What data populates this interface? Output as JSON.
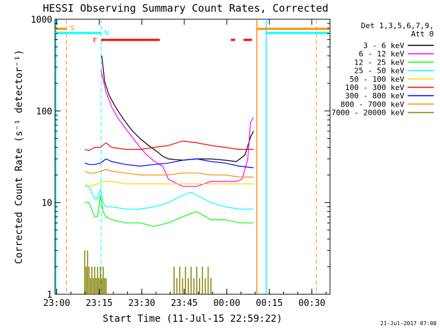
{
  "chart_data": {
    "type": "line",
    "title": "HESSI Observing Summary Count Rates, Corrected",
    "xlabel": "Start Time (11-Jul-15 22:59:22)",
    "ylabel": "Corrected Count Rate (s⁻¹ detector⁻¹)",
    "x_unit": "minutes since 22:59:22",
    "xlim": [
      0,
      97
    ],
    "ylim": [
      1,
      1000
    ],
    "y_scale": "log",
    "x_ticks": [
      {
        "label": "23:00",
        "value": 0.6
      },
      {
        "label": "23:15",
        "value": 15.6
      },
      {
        "label": "23:30",
        "value": 30.6
      },
      {
        "label": "23:45",
        "value": 45.6
      },
      {
        "label": "00:00",
        "value": 60.6
      },
      {
        "label": "00:15",
        "value": 75.6
      },
      {
        "label": "00:30",
        "value": 90.6
      }
    ],
    "y_ticks": [
      {
        "label": "1",
        "value": 1
      },
      {
        "label": "10",
        "value": 10
      },
      {
        "label": "100",
        "value": 100
      },
      {
        "label": "1000",
        "value": 1000
      }
    ],
    "legend": {
      "position": "top-right",
      "header1": "Det 1,3,5,6,7,9,",
      "header2": "Att 0"
    },
    "colors": {
      "s_flag": "#ff8c00",
      "n_flag": "#00ffff",
      "f_flag": "#ff0000"
    },
    "flags": {
      "s_label": "S",
      "n_label": "N",
      "f_label": "F"
    },
    "vertical_lines": [
      {
        "x": 0.3,
        "color": "#00ffff",
        "style": "solid"
      },
      {
        "x": 4.0,
        "color": "#ff8c00",
        "style": "dashed"
      },
      {
        "x": 16.3,
        "color": "#00ffff",
        "style": "dashed"
      },
      {
        "x": 71.2,
        "color": "#ff8c00",
        "style": "solid"
      },
      {
        "x": 74.5,
        "color": "#00ffff",
        "style": "solid"
      },
      {
        "x": 92.2,
        "color": "#ff8c00",
        "style": "dashed"
      }
    ],
    "series": [
      {
        "name": "3 - 6 keV",
        "color": "#000000",
        "x": [
          16.5,
          17.5,
          19,
          21,
          23,
          25,
          27,
          30,
          33,
          36,
          38,
          40,
          45,
          50,
          55,
          60,
          64,
          67,
          69,
          70
        ],
        "values": [
          400,
          210,
          150,
          115,
          92,
          75,
          62,
          50,
          42,
          36,
          32,
          30,
          29,
          30,
          30,
          29,
          28,
          33,
          52,
          60
        ]
      },
      {
        "name": "6 - 12 keV",
        "color": "#ff00ff",
        "x": [
          16.2,
          17,
          18,
          20,
          22,
          24,
          26,
          28,
          30,
          32,
          34,
          36,
          38,
          40,
          45,
          50,
          55,
          60,
          64,
          66,
          68,
          69,
          70
        ],
        "values": [
          280,
          220,
          160,
          110,
          85,
          70,
          58,
          48,
          40,
          34,
          30,
          27,
          25,
          18,
          15,
          15,
          17,
          17,
          17,
          18,
          30,
          75,
          85
        ]
      },
      {
        "name": "12 - 25 keV",
        "color": "#00ff00",
        "x": [
          10.5,
          12,
          14,
          15,
          16,
          17,
          18,
          20,
          25,
          30,
          35,
          40,
          45,
          50,
          55,
          60,
          65,
          70
        ],
        "values": [
          10,
          10,
          7,
          7,
          12,
          8,
          7,
          6.5,
          6,
          6,
          5.5,
          6,
          7,
          8,
          6.5,
          6.5,
          6,
          6
        ]
      },
      {
        "name": "25 - 50 keV",
        "color": "#00ffff",
        "x": [
          10.5,
          12,
          14,
          15,
          16,
          17,
          18,
          20,
          25,
          30,
          35,
          40,
          45,
          48,
          50,
          55,
          60,
          65,
          70
        ],
        "values": [
          15,
          15,
          11,
          11,
          14,
          10,
          9,
          9,
          8.5,
          8.5,
          9,
          10,
          12,
          13,
          12,
          10,
          9,
          8.5,
          8.5
        ]
      },
      {
        "name": "50 - 100 keV",
        "color": "#ffd700",
        "x": [
          10.5,
          12,
          15,
          17,
          20,
          25,
          30,
          35,
          40,
          45,
          50,
          55,
          60,
          65,
          70
        ],
        "values": [
          16,
          15,
          16,
          17,
          17,
          16,
          16,
          16,
          16,
          16,
          16,
          16,
          16,
          16,
          16
        ]
      },
      {
        "name": "100 - 300 keV",
        "color": "#ff0000",
        "x": [
          10.5,
          12,
          14,
          16,
          18,
          20,
          25,
          30,
          35,
          40,
          45,
          50,
          55,
          60,
          65,
          70
        ],
        "values": [
          38,
          37,
          40,
          40,
          45,
          40,
          38,
          38,
          40,
          42,
          47,
          45,
          42,
          40,
          38,
          38
        ]
      },
      {
        "name": "300 - 800 keV",
        "color": "#0000ff",
        "x": [
          10.5,
          12,
          14,
          16,
          18,
          20,
          25,
          30,
          35,
          40,
          45,
          50,
          55,
          60,
          65,
          70
        ],
        "values": [
          27,
          26,
          26,
          27,
          30,
          28,
          26,
          25,
          26,
          27,
          29,
          30,
          28,
          27,
          25,
          24
        ]
      },
      {
        "name": "800 - 7000 keV",
        "color": "#ff8c00",
        "x": [
          10.5,
          12,
          14,
          16,
          18,
          20,
          25,
          30,
          35,
          40,
          45,
          50,
          55,
          60,
          65,
          70
        ],
        "values": [
          22,
          21,
          21,
          22,
          23,
          22,
          21,
          20,
          20,
          20,
          21,
          21,
          20,
          20,
          19,
          19
        ]
      },
      {
        "name": "7000 - 20000 keV",
        "color": "#808000",
        "x": [
          10.5,
          11,
          11.5,
          12,
          12.5,
          13,
          13.5,
          14,
          14.5,
          15,
          15.5,
          16,
          16.5,
          17,
          17.5,
          18,
          42,
          43,
          44,
          45,
          46,
          47,
          48,
          49,
          50,
          51,
          52,
          53,
          54,
          55
        ],
        "values": [
          3,
          2,
          3,
          2,
          1.5,
          2,
          1.5,
          2,
          1.5,
          2,
          1.5,
          2,
          1.5,
          2,
          1.5,
          1.5,
          2,
          1.5,
          2,
          1.5,
          2,
          1.5,
          2,
          1.5,
          2,
          1.5,
          2,
          1.5,
          2,
          1.5
        ]
      }
    ]
  },
  "footer": {
    "date": "21-Jul-2017 07:00"
  }
}
